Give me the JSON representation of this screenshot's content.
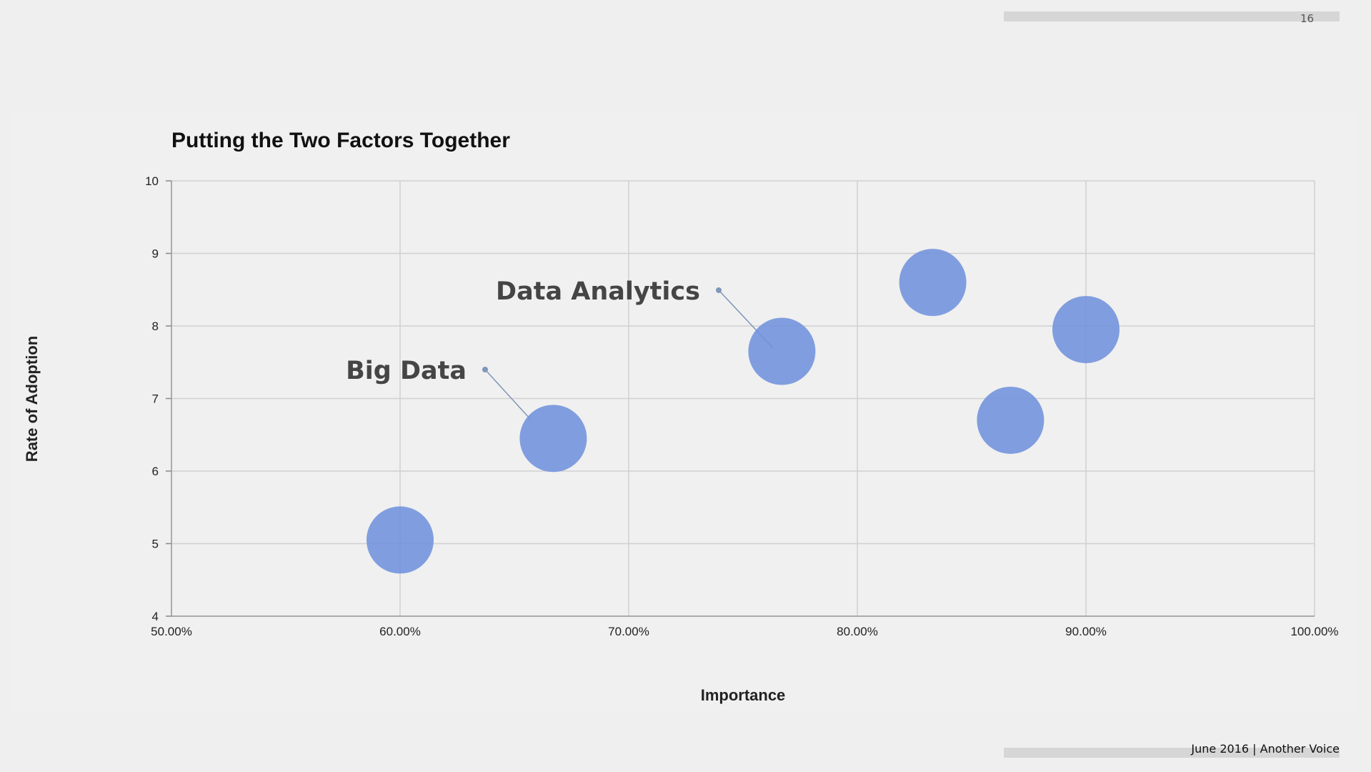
{
  "slide": {
    "page_number": "16",
    "footer": "June 2016  |  Another Voice"
  },
  "colors": {
    "bubble": "#6f92dc",
    "grid": "#d0d0d0",
    "leader": "#7f97b8"
  },
  "chart_data": {
    "type": "scatter",
    "title": "Putting the Two Factors Together",
    "xlabel": "Importance",
    "ylabel": "Rate of Adoption",
    "xlim": [
      0.5,
      1.0
    ],
    "ylim": [
      4,
      10
    ],
    "x_ticks": [
      0.5,
      0.6,
      0.7,
      0.8,
      0.9,
      1.0
    ],
    "x_tick_labels": [
      "50.00%",
      "60.00%",
      "70.00%",
      "80.00%",
      "90.00%",
      "100.00%"
    ],
    "y_ticks": [
      4,
      5,
      6,
      7,
      8,
      9,
      10
    ],
    "y_tick_labels": [
      "4",
      "5",
      "6",
      "7",
      "8",
      "9",
      "10"
    ],
    "grid": true,
    "points": [
      {
        "x": 0.6,
        "y": 5.05
      },
      {
        "x": 0.667,
        "y": 6.45
      },
      {
        "x": 0.767,
        "y": 7.65
      },
      {
        "x": 0.833,
        "y": 8.6
      },
      {
        "x": 0.867,
        "y": 6.7
      },
      {
        "x": 0.9,
        "y": 7.95
      }
    ],
    "annotations": [
      {
        "text": "Data Analytics",
        "point_index": 2
      },
      {
        "text": "Big Data",
        "point_index": 1
      }
    ]
  }
}
